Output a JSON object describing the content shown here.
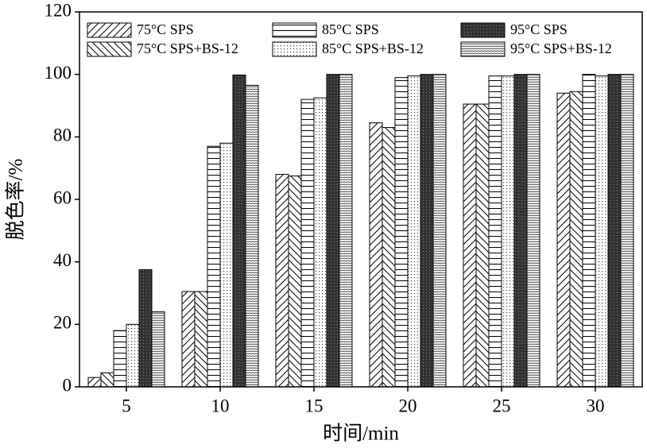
{
  "chart_data": {
    "type": "bar",
    "x_label": "时间/min",
    "y_label": "脱色率/%",
    "categories": [
      "5",
      "10",
      "15",
      "20",
      "25",
      "30"
    ],
    "series": [
      {
        "name": "75°C SPS",
        "color": "#000000",
        "pattern": "diagonal-up",
        "values": [
          3,
          30.5,
          68,
          84.5,
          90.5,
          94
        ]
      },
      {
        "name": "75°C SPS+BS-12",
        "color": "#000000",
        "pattern": "diagonal-down",
        "values": [
          4.5,
          30.5,
          67.5,
          83,
          90.5,
          94.5
        ]
      },
      {
        "name": "85°C SPS",
        "color": "#000000",
        "pattern": "horizontal",
        "values": [
          18,
          77,
          92,
          99,
          99.5,
          100
        ]
      },
      {
        "name": "85°C SPS+BS-12",
        "color": "#000000",
        "pattern": "dots",
        "values": [
          20,
          78,
          92.5,
          99.5,
          99.5,
          99.5
        ]
      },
      {
        "name": "95°C SPS",
        "color": "#333333",
        "pattern": "dense-cross",
        "values": [
          37.5,
          99.8,
          100,
          100,
          100,
          100
        ]
      },
      {
        "name": "95°C SPS+BS-12",
        "color": "#000000",
        "pattern": "dense-horizontal",
        "values": [
          24,
          96.5,
          100,
          100,
          100,
          100
        ]
      }
    ],
    "ylim": [
      0,
      120
    ],
    "yticks": [
      0,
      20,
      40,
      60,
      80,
      100,
      120
    ]
  }
}
